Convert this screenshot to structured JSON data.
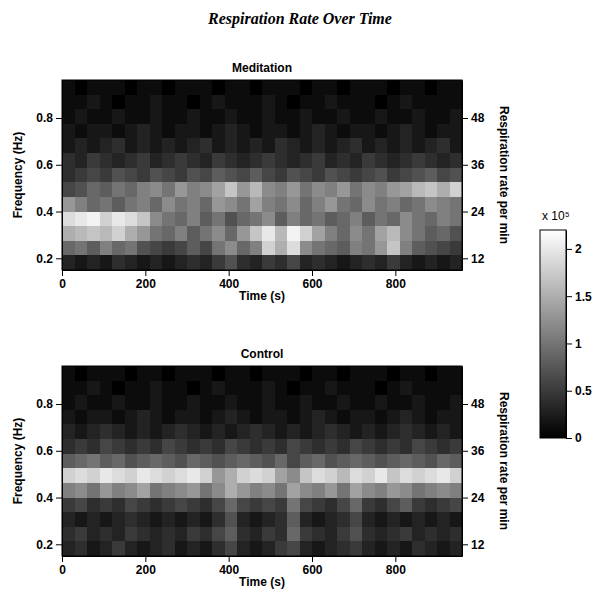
{
  "chart_data": {
    "type": "heatmap",
    "title": "Respiration Rate Over Time",
    "xlabel": "Time (s)",
    "ylabel": "Frequency (Hz)",
    "y2label": "Respiration rate per min",
    "xlim": [
      0,
      960
    ],
    "xticks": [
      0,
      200,
      400,
      600,
      800
    ],
    "ylim": [
      0.15,
      0.9625
    ],
    "yticks": [
      0.2,
      0.4,
      0.6,
      0.8
    ],
    "y2lim": [
      9,
      57.75
    ],
    "y2ticks": [
      12,
      24,
      36,
      48
    ],
    "x_edges": [
      0,
      30,
      60,
      90,
      120,
      150,
      180,
      210,
      240,
      270,
      300,
      330,
      360,
      390,
      420,
      450,
      480,
      510,
      540,
      570,
      600,
      630,
      660,
      690,
      720,
      750,
      780,
      810,
      840,
      870,
      900,
      930,
      960
    ],
    "y_edges": [
      0.15,
      0.2125,
      0.275,
      0.3375,
      0.4,
      0.4625,
      0.525,
      0.5875,
      0.65,
      0.7125,
      0.775,
      0.8375,
      0.9,
      0.9625
    ],
    "colorbar": {
      "lim": [
        0,
        2.2
      ],
      "ticks": [
        0,
        0.5,
        1,
        1.5,
        2
      ],
      "label": "x 10⁵"
    },
    "panels": [
      {
        "title": "Meditation",
        "cells": [
          [
            0.3,
            0.2,
            0.3,
            0.2,
            0.4,
            0.3,
            0.2,
            0.3,
            0.2,
            0.3,
            0.4,
            0.3,
            0.5,
            0.7,
            0.4,
            0.3,
            0.5,
            0.4,
            0.6,
            0.3,
            0.4,
            0.3,
            0.2,
            0.3,
            0.4,
            0.3,
            0.5,
            0.3,
            0.2,
            0.3,
            0.2,
            0.3
          ],
          [
            0.9,
            1.0,
            0.8,
            1.1,
            0.9,
            1.0,
            0.7,
            0.6,
            0.5,
            0.6,
            0.8,
            0.6,
            1.0,
            1.2,
            0.9,
            1.1,
            1.8,
            1.5,
            1.9,
            1.2,
            1.0,
            0.9,
            0.8,
            1.1,
            1.0,
            1.3,
            1.7,
            1.1,
            0.8,
            0.7,
            0.6,
            0.5
          ],
          [
            1.5,
            1.6,
            1.7,
            1.6,
            1.8,
            1.5,
            1.3,
            1.0,
            0.9,
            1.1,
            0.8,
            1.0,
            1.2,
            0.9,
            1.3,
            1.7,
            2.0,
            1.6,
            2.1,
            1.8,
            1.4,
            1.1,
            0.9,
            1.2,
            1.0,
            1.4,
            1.6,
            1.2,
            1.0,
            0.8,
            0.9,
            0.7
          ],
          [
            1.9,
            2.0,
            2.1,
            1.8,
            2.0,
            1.9,
            1.7,
            1.2,
            1.0,
            0.9,
            1.1,
            0.8,
            1.0,
            0.7,
            0.9,
            1.0,
            1.2,
            0.8,
            1.1,
            0.9,
            1.0,
            0.8,
            0.9,
            1.1,
            0.8,
            1.0,
            0.9,
            1.2,
            1.0,
            0.9,
            1.1,
            1.0
          ],
          [
            1.3,
            1.1,
            0.9,
            1.0,
            0.8,
            1.0,
            1.1,
            0.9,
            1.2,
            1.0,
            1.1,
            0.9,
            1.3,
            1.2,
            1.0,
            1.4,
            1.1,
            1.0,
            1.2,
            0.9,
            1.1,
            1.3,
            1.0,
            0.9,
            1.2,
            1.0,
            1.1,
            0.9,
            1.0,
            1.2,
            1.1,
            1.0
          ],
          [
            0.6,
            0.7,
            0.9,
            0.8,
            1.0,
            0.9,
            1.1,
            1.2,
            1.0,
            1.3,
            1.1,
            1.2,
            1.4,
            1.7,
            1.3,
            1.6,
            1.2,
            1.1,
            1.3,
            1.0,
            1.2,
            1.1,
            1.3,
            1.0,
            1.2,
            1.1,
            1.3,
            1.4,
            1.6,
            1.7,
            1.5,
            1.8
          ],
          [
            0.4,
            0.5,
            0.6,
            0.5,
            0.7,
            0.6,
            0.5,
            0.7,
            0.6,
            0.5,
            0.7,
            0.6,
            0.8,
            0.7,
            0.6,
            0.8,
            0.6,
            0.5,
            0.7,
            0.6,
            0.5,
            0.7,
            0.6,
            0.5,
            0.6,
            0.7,
            0.5,
            0.6,
            0.7,
            0.8,
            0.6,
            0.7
          ],
          [
            0.4,
            0.3,
            0.5,
            0.4,
            0.3,
            0.4,
            0.5,
            0.3,
            0.4,
            0.5,
            0.4,
            0.3,
            0.5,
            0.4,
            0.3,
            0.4,
            0.5,
            0.4,
            0.3,
            0.4,
            0.5,
            0.3,
            0.4,
            0.3,
            0.5,
            0.4,
            0.3,
            0.4,
            0.5,
            0.4,
            0.3,
            0.4
          ],
          [
            0.2,
            0.3,
            0.2,
            0.3,
            0.4,
            0.2,
            0.3,
            0.2,
            0.3,
            0.2,
            0.3,
            0.4,
            0.2,
            0.3,
            0.2,
            0.3,
            0.2,
            0.4,
            0.3,
            0.2,
            0.3,
            0.2,
            0.3,
            0.4,
            0.2,
            0.3,
            0.2,
            0.3,
            0.2,
            0.3,
            0.4,
            0.2
          ],
          [
            0.2,
            0.1,
            0.2,
            0.2,
            0.1,
            0.2,
            0.3,
            0.2,
            0.1,
            0.2,
            0.2,
            0.1,
            0.2,
            0.3,
            0.2,
            0.1,
            0.2,
            0.2,
            0.1,
            0.2,
            0.3,
            0.2,
            0.1,
            0.2,
            0.2,
            0.1,
            0.2,
            0.3,
            0.2,
            0.1,
            0.2,
            0.2
          ],
          [
            0.1,
            0.2,
            0.1,
            0.1,
            0.2,
            0.1,
            0.1,
            0.2,
            0.1,
            0.1,
            0.2,
            0.1,
            0.1,
            0.2,
            0.1,
            0.1,
            0.2,
            0.1,
            0.1,
            0.2,
            0.1,
            0.1,
            0.2,
            0.1,
            0.1,
            0.2,
            0.1,
            0.1,
            0.2,
            0.1,
            0.1,
            0.2
          ],
          [
            0.1,
            0.1,
            0.2,
            0.1,
            0.0,
            0.1,
            0.1,
            0.2,
            0.1,
            0.1,
            0.0,
            0.1,
            0.2,
            0.1,
            0.1,
            0.1,
            0.2,
            0.1,
            0.0,
            0.1,
            0.1,
            0.2,
            0.1,
            0.1,
            0.1,
            0.0,
            0.1,
            0.2,
            0.1,
            0.1,
            0.1,
            0.1
          ],
          [
            0.1,
            0.0,
            0.1,
            0.1,
            0.1,
            0.0,
            0.1,
            0.1,
            0.0,
            0.1,
            0.1,
            0.1,
            0.0,
            0.1,
            0.1,
            0.0,
            0.1,
            0.1,
            0.1,
            0.0,
            0.1,
            0.1,
            0.0,
            0.1,
            0.1,
            0.1,
            0.0,
            0.1,
            0.1,
            0.0,
            0.1,
            0.1
          ]
        ]
      },
      {
        "title": "Control",
        "cells": [
          [
            0.3,
            0.4,
            0.2,
            0.3,
            0.5,
            0.3,
            0.2,
            0.3,
            0.4,
            0.2,
            0.3,
            0.2,
            0.4,
            0.6,
            0.3,
            0.2,
            0.3,
            0.5,
            0.6,
            0.3,
            0.2,
            0.3,
            0.4,
            0.5,
            0.3,
            0.2,
            0.3,
            0.2,
            0.4,
            0.3,
            0.2,
            0.3
          ],
          [
            0.4,
            0.5,
            0.3,
            0.4,
            0.3,
            0.5,
            0.4,
            0.3,
            0.4,
            0.3,
            0.5,
            0.4,
            0.6,
            0.8,
            0.4,
            0.3,
            0.5,
            0.4,
            0.9,
            0.5,
            0.4,
            0.3,
            0.5,
            0.7,
            0.4,
            0.3,
            0.4,
            0.5,
            0.3,
            0.4,
            0.3,
            0.4
          ],
          [
            0.3,
            0.2,
            0.3,
            0.2,
            0.3,
            0.4,
            0.3,
            0.2,
            0.3,
            0.2,
            0.3,
            0.2,
            0.4,
            0.7,
            0.3,
            0.2,
            0.3,
            0.4,
            0.8,
            0.3,
            0.2,
            0.3,
            0.4,
            0.6,
            0.3,
            0.2,
            0.3,
            0.2,
            0.3,
            0.2,
            0.3,
            0.2
          ],
          [
            0.5,
            0.6,
            0.4,
            0.5,
            0.4,
            0.6,
            0.5,
            0.4,
            0.5,
            0.6,
            0.5,
            0.4,
            0.6,
            0.9,
            0.6,
            0.5,
            0.6,
            0.5,
            1.0,
            0.6,
            0.5,
            0.4,
            0.6,
            0.9,
            0.5,
            0.4,
            0.6,
            0.8,
            0.5,
            0.4,
            0.5,
            0.6
          ],
          [
            1.1,
            1.2,
            1.0,
            1.3,
            1.1,
            1.2,
            1.4,
            1.0,
            1.1,
            1.2,
            1.3,
            1.0,
            1.2,
            1.5,
            1.3,
            1.1,
            1.2,
            1.0,
            1.4,
            1.2,
            1.1,
            1.3,
            1.0,
            1.4,
            1.2,
            1.1,
            1.3,
            1.2,
            1.0,
            1.1,
            1.2,
            1.1
          ],
          [
            1.8,
            1.9,
            1.8,
            2.0,
            1.9,
            1.8,
            2.0,
            1.9,
            1.8,
            1.9,
            2.0,
            1.8,
            1.3,
            1.5,
            1.8,
            1.9,
            1.8,
            1.4,
            1.2,
            1.7,
            1.9,
            1.8,
            1.6,
            1.9,
            1.8,
            2.0,
            1.7,
            1.9,
            1.8,
            1.9,
            2.0,
            1.8
          ],
          [
            0.8,
            0.9,
            1.0,
            0.8,
            0.9,
            0.7,
            0.8,
            0.9,
            0.8,
            0.7,
            0.9,
            0.8,
            0.7,
            0.8,
            0.9,
            0.8,
            0.7,
            0.9,
            0.6,
            0.8,
            0.9,
            0.7,
            0.8,
            0.9,
            0.8,
            0.7,
            0.8,
            0.9,
            0.8,
            0.7,
            0.9,
            0.8
          ],
          [
            0.4,
            0.5,
            0.4,
            0.6,
            0.5,
            0.4,
            0.5,
            0.4,
            0.6,
            0.5,
            0.4,
            0.5,
            0.4,
            0.6,
            0.5,
            0.4,
            0.5,
            0.4,
            0.6,
            0.5,
            0.4,
            0.5,
            0.4,
            0.6,
            0.5,
            0.4,
            0.5,
            0.4,
            0.6,
            0.5,
            0.4,
            0.5
          ],
          [
            0.3,
            0.2,
            0.3,
            0.4,
            0.3,
            0.2,
            0.3,
            0.2,
            0.3,
            0.4,
            0.3,
            0.2,
            0.3,
            0.2,
            0.3,
            0.4,
            0.3,
            0.2,
            0.3,
            0.2,
            0.3,
            0.4,
            0.3,
            0.2,
            0.3,
            0.2,
            0.3,
            0.4,
            0.3,
            0.2,
            0.3,
            0.2
          ],
          [
            0.2,
            0.1,
            0.2,
            0.2,
            0.1,
            0.2,
            0.3,
            0.2,
            0.1,
            0.2,
            0.2,
            0.1,
            0.2,
            0.3,
            0.2,
            0.1,
            0.2,
            0.2,
            0.1,
            0.2,
            0.3,
            0.2,
            0.1,
            0.2,
            0.2,
            0.1,
            0.2,
            0.3,
            0.2,
            0.1,
            0.2,
            0.2
          ],
          [
            0.1,
            0.2,
            0.1,
            0.1,
            0.2,
            0.1,
            0.1,
            0.2,
            0.1,
            0.1,
            0.2,
            0.1,
            0.1,
            0.2,
            0.1,
            0.1,
            0.2,
            0.1,
            0.1,
            0.2,
            0.1,
            0.1,
            0.2,
            0.1,
            0.1,
            0.2,
            0.1,
            0.1,
            0.2,
            0.1,
            0.1,
            0.2
          ],
          [
            0.1,
            0.1,
            0.2,
            0.1,
            0.0,
            0.1,
            0.1,
            0.2,
            0.1,
            0.1,
            0.0,
            0.1,
            0.2,
            0.1,
            0.1,
            0.1,
            0.2,
            0.1,
            0.0,
            0.1,
            0.1,
            0.2,
            0.1,
            0.1,
            0.1,
            0.0,
            0.1,
            0.2,
            0.1,
            0.1,
            0.1,
            0.1
          ],
          [
            0.1,
            0.0,
            0.1,
            0.1,
            0.1,
            0.0,
            0.1,
            0.1,
            0.0,
            0.1,
            0.1,
            0.1,
            0.0,
            0.1,
            0.1,
            0.0,
            0.1,
            0.1,
            0.1,
            0.0,
            0.1,
            0.1,
            0.0,
            0.1,
            0.1,
            0.1,
            0.0,
            0.1,
            0.1,
            0.0,
            0.1,
            0.1
          ]
        ]
      }
    ]
  }
}
